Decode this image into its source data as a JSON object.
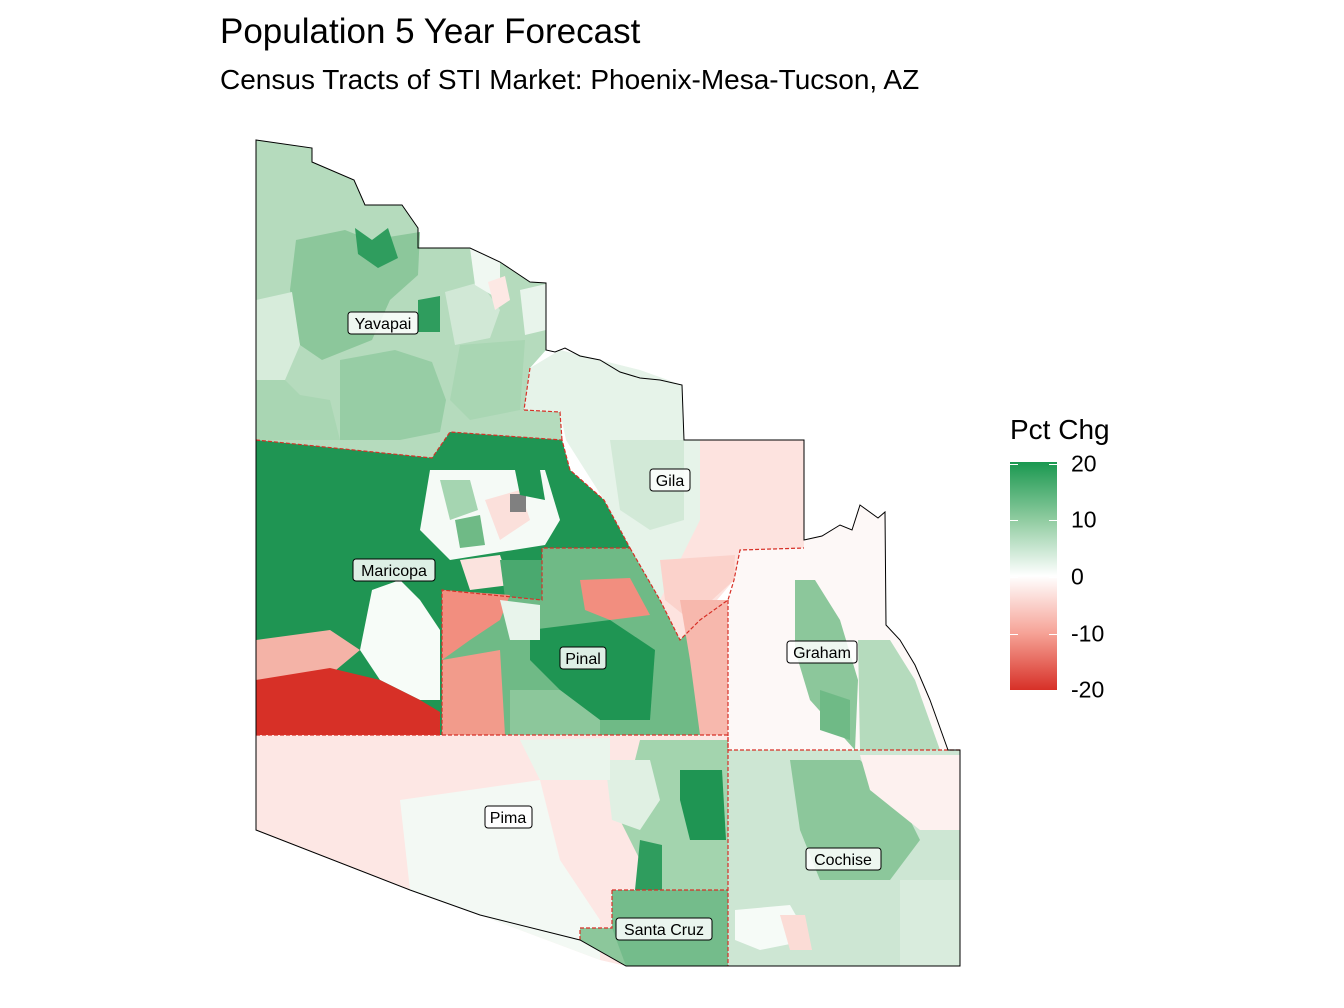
{
  "title": "Population 5 Year Forecast",
  "subtitle": "Census Tracts of STI Market: Phoenix-Mesa-Tucson, AZ",
  "legend": {
    "title": "Pct Chg",
    "ticks": [
      "20",
      "10",
      "0",
      "-10",
      "-20"
    ],
    "low_color": "#d73027",
    "mid_color": "#ffffff",
    "high_color": "#1a9850",
    "range": [
      -20,
      20
    ]
  },
  "counties": {
    "yavapai": "Yavapai",
    "gila": "Gila",
    "maricopa": "Maricopa",
    "pinal": "Pinal",
    "graham": "Graham",
    "pima": "Pima",
    "cochise": "Cochise",
    "santa_cruz": "Santa Cruz"
  },
  "colors": {
    "boundary": "#d73027",
    "outline": "#000000",
    "no_data": "#808080"
  }
}
